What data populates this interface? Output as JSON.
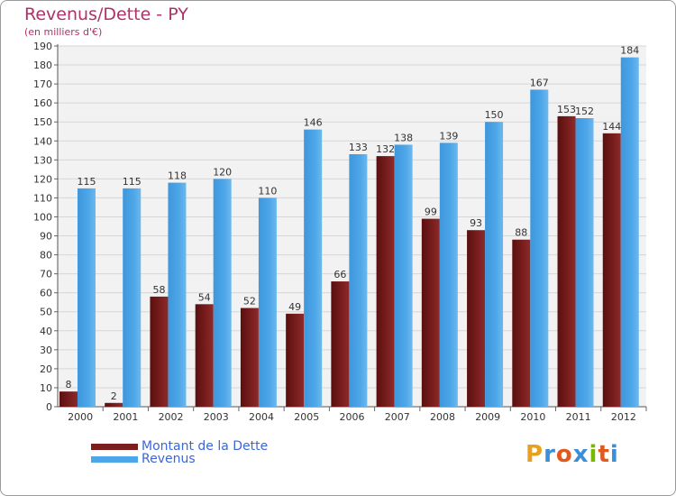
{
  "title": "Revenus/Dette - PY",
  "subtitle": "(en milliers d'€)",
  "brand": "Proxiti",
  "colors": {
    "debt": "#7a1e1e",
    "revenue": "#4da6e8",
    "title": "#b0306a",
    "legend_text": "#3b66d8"
  },
  "chart_data": {
    "type": "bar",
    "categories": [
      "2000",
      "2001",
      "2002",
      "2003",
      "2004",
      "2005",
      "2006",
      "2007",
      "2008",
      "2009",
      "2010",
      "2011",
      "2012"
    ],
    "series": [
      {
        "name": "Montant de la Dette",
        "values": [
          8,
          2,
          58,
          54,
          52,
          49,
          66,
          132,
          99,
          93,
          88,
          153,
          144
        ]
      },
      {
        "name": "Revenus",
        "values": [
          115,
          115,
          118,
          120,
          110,
          146,
          133,
          138,
          139,
          150,
          167,
          152,
          184
        ]
      }
    ],
    "ylim": [
      0,
      190
    ],
    "yticks": [
      0,
      10,
      20,
      30,
      40,
      50,
      60,
      70,
      80,
      90,
      100,
      110,
      120,
      130,
      140,
      150,
      160,
      170,
      180,
      190
    ],
    "grid": true,
    "legend": "bottom-left"
  }
}
